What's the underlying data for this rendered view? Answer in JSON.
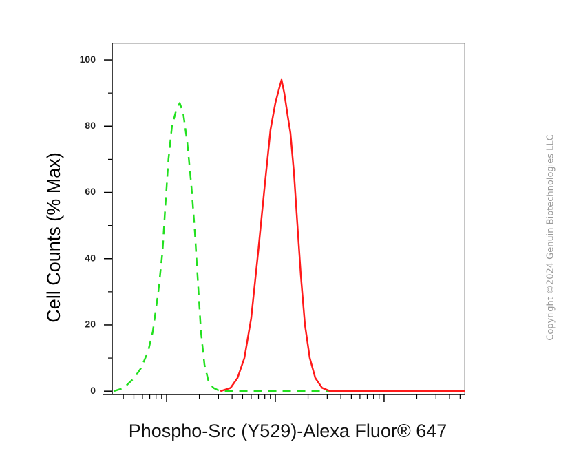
{
  "chart_data": {
    "type": "line",
    "ylabel": "Cell Counts (% Max)",
    "xlabel": "Phospho-Src (Y529)-Alexa Fluor® 647",
    "watermark": "Copyright ©2024 Genuin Biotechnologies LLC",
    "xscale": "log",
    "xlim": [
      31.6,
      55080
    ],
    "xticks": [
      100,
      1000,
      10000
    ],
    "ylim": [
      -1,
      105
    ],
    "yticks": [
      0,
      20,
      40,
      60,
      80,
      100
    ],
    "yticks_minor": [
      10,
      30,
      50,
      70,
      90
    ],
    "series": [
      {
        "color": "#22e01f",
        "dash": true,
        "x": [
          32.6,
          40.5,
          50.4,
          58.3,
          67.5,
          74.7,
          83.9,
          91.6,
          97,
          104,
          112,
          123,
          132,
          142,
          155,
          169,
          182,
          195,
          207,
          223,
          243,
          269,
          312,
          417,
          55080
        ],
        "values": [
          0,
          1,
          4,
          7,
          12,
          18,
          30,
          42,
          55,
          70,
          80,
          85,
          87,
          84,
          75,
          62,
          48,
          32,
          18,
          8,
          3,
          1,
          0,
          0,
          0
        ]
      },
      {
        "color": "#ff1a1a",
        "dash": false,
        "x": [
          312,
          388,
          449,
          519,
          600,
          695,
          804,
          903,
          1000,
          1076,
          1140,
          1208,
          1300,
          1377,
          1483,
          1596,
          1714,
          1871,
          2072,
          2328,
          2692,
          3208,
          55080
        ],
        "values": [
          0,
          1,
          4,
          10,
          22,
          42,
          63,
          79,
          87,
          91,
          94,
          90,
          83,
          78,
          66,
          50,
          35,
          20,
          10,
          4,
          1,
          0,
          0
        ]
      }
    ]
  }
}
